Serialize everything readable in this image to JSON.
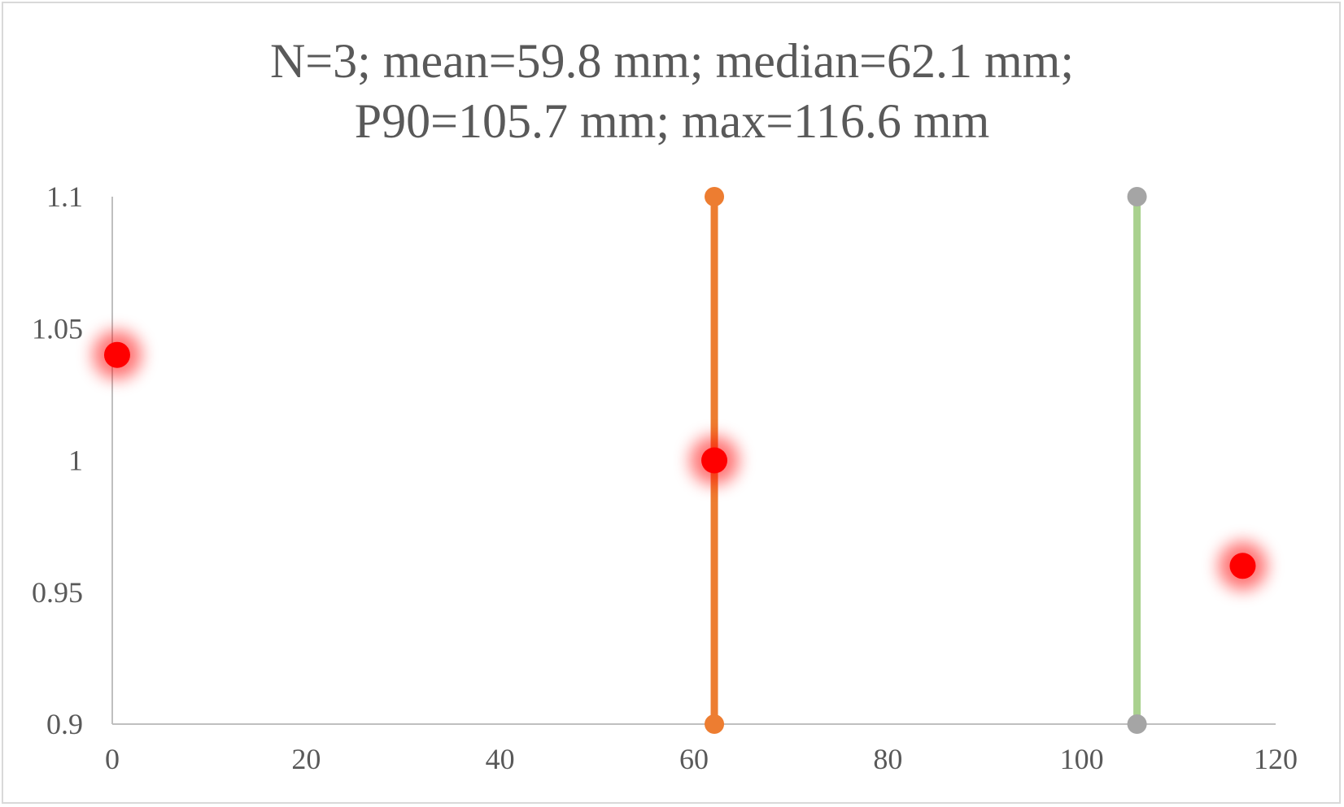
{
  "chart_data": {
    "type": "scatter",
    "title_lines": [
      "N=3; mean=59.8 mm; median=62.1 mm;",
      "P90=105.7 mm; max=116.6 mm"
    ],
    "xlabel": "",
    "ylabel": "",
    "xlim": [
      0,
      120
    ],
    "ylim": [
      0.9,
      1.1
    ],
    "x_ticks": [
      "0",
      "20",
      "40",
      "60",
      "80",
      "100",
      "120"
    ],
    "y_ticks": [
      "0.9",
      "0.95",
      "1",
      "1.05",
      "1.1"
    ],
    "grid": false,
    "legend": "none",
    "series": [
      {
        "kind": "points",
        "color": "#ff0000",
        "glow": true,
        "points": [
          {
            "x": 0.5,
            "y": 1.04
          },
          {
            "x": 62.1,
            "y": 1.0
          },
          {
            "x": 116.6,
            "y": 0.96
          }
        ]
      },
      {
        "kind": "vertical-line",
        "color": "#ed7d31",
        "marker_color": "#ed7d31",
        "x": 62.1,
        "y_range": [
          0.9,
          1.1
        ]
      },
      {
        "kind": "vertical-line",
        "color": "#a9d18e",
        "marker_color": "#a5a5a5",
        "x": 105.7,
        "y_range": [
          0.9,
          1.1
        ]
      }
    ],
    "axis_color": "#bfbfbf"
  }
}
